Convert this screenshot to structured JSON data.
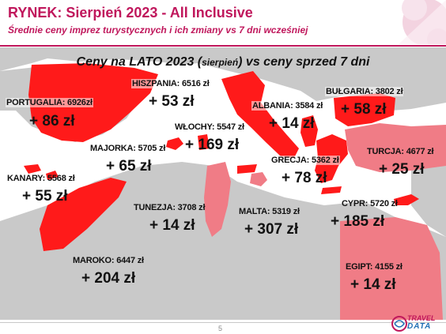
{
  "header": {
    "title": "RYNEK: Sierpień 2023 - All Inclusive",
    "subtitle": "Średnie ceny imprez turystycznych i ich zmiany vs 7 dni wcześniej"
  },
  "map_heading": {
    "main": "Ceny na LATO 2023 (",
    "small": "sierpień",
    "rest": ") vs ceny sprzed 7 dni"
  },
  "destinations": [
    {
      "id": "portugalia",
      "label": "PORTUGALIA: 6926zł",
      "change": "+ 86 zł"
    },
    {
      "id": "hiszpania",
      "label": "HISZPANIA: 6516 zł",
      "change": "+ 53 zł"
    },
    {
      "id": "wlochy",
      "label": "WŁOCHY: 5547 zł",
      "change": "+ 169 zł"
    },
    {
      "id": "albania",
      "label": "ALBANIA: 3584 zł",
      "change": "+ 14 zł"
    },
    {
      "id": "bulgaria",
      "label": "BUŁGARIA: 3802 zł",
      "change": "+ 58 zł"
    },
    {
      "id": "majorka",
      "label": "MAJORKA: 5705 zł",
      "change": "+ 65 zł"
    },
    {
      "id": "turcja",
      "label": "TURCJA: 4677 zł",
      "change": "+ 25 zł"
    },
    {
      "id": "grecja",
      "label": "GRECJA: 5362 zł",
      "change": "+ 78 zł"
    },
    {
      "id": "kanary",
      "label": "KANARY: 5568 zł",
      "change": "+ 55 zł"
    },
    {
      "id": "tunezja",
      "label": "TUNEZJA: 3708 zł",
      "change": "+ 14 zł"
    },
    {
      "id": "malta",
      "label": "MALTA: 5319 zł",
      "change": "+ 307 zł"
    },
    {
      "id": "cypr",
      "label": "CYPR: 5720 zł",
      "change": "+ 185 zł"
    },
    {
      "id": "maroko",
      "label": "MAROKO: 6447 zł",
      "change": "+ 204 zł"
    },
    {
      "id": "egipt",
      "label": "EGIPT:  4155 zł",
      "change": "+ 14 zł"
    }
  ],
  "footer": {
    "page_number": "5",
    "logo_top": "TRAVEL",
    "logo_bottom": "DATA"
  },
  "colors": {
    "accent": "#c0175c",
    "highlight_red": "#ff1a1a",
    "highlight_pink": "#f07c86",
    "land_gray": "#c9c9c9",
    "sea": "#ffffff"
  }
}
